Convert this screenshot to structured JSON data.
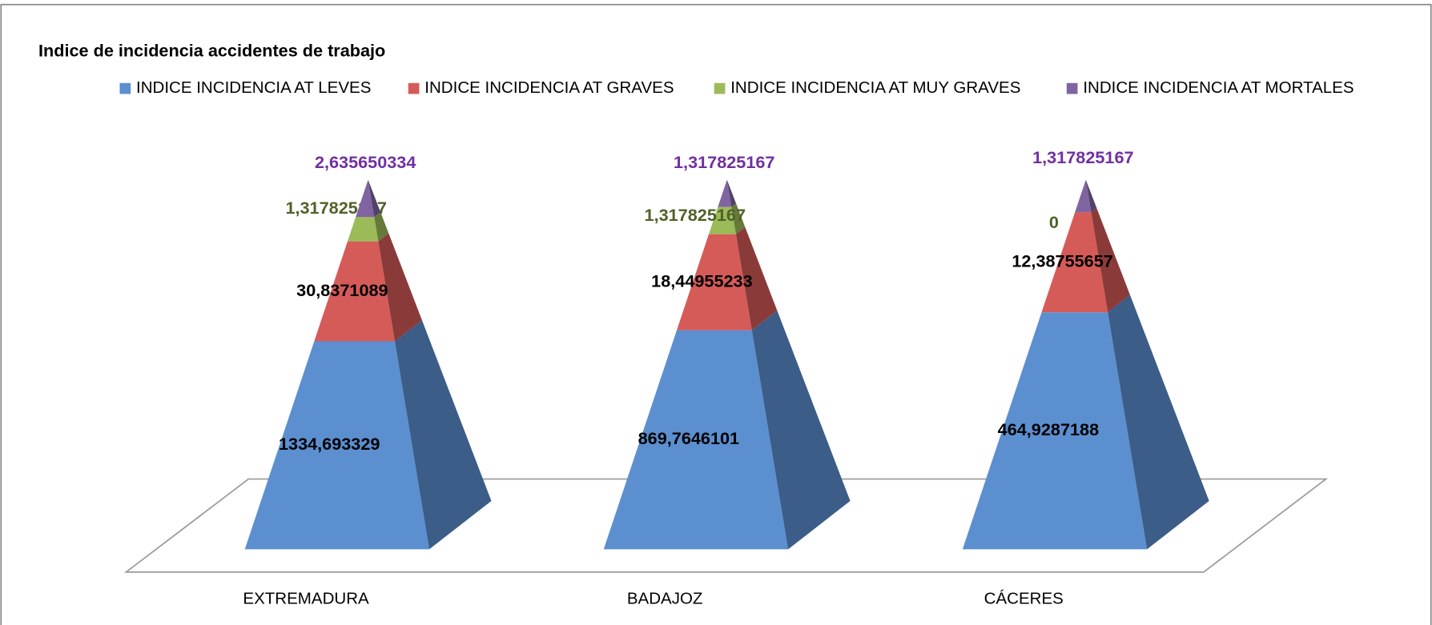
{
  "chart_data": {
    "type": "pyramid",
    "title": "Indice de incidencia accidentes de trabajo",
    "categories": [
      "EXTREMADURA",
      "BADAJOZ",
      "CÁCERES"
    ],
    "series": [
      {
        "name": "INDICE INCIDENCIA AT LEVES",
        "color": "#5b8fd0",
        "label_color": "#000000",
        "values": [
          1334.693329,
          869.7646101,
          464.9287188
        ],
        "value_labels": [
          "1334,693329",
          "869,7646101",
          "464,9287188"
        ]
      },
      {
        "name": "INDICE INCIDENCIA AT GRAVES",
        "color": "#d55b58",
        "label_color": "#000000",
        "values": [
          30.8371089,
          18.44955233,
          12.38755657
        ],
        "value_labels": [
          "30,8371089",
          "18,44955233",
          "12,38755657"
        ]
      },
      {
        "name": "INDICE INCIDENCIA AT MUY GRAVES",
        "color": "#9bbb59",
        "label_color": "#4f6228",
        "values": [
          1.317825167,
          1.317825167,
          0
        ],
        "value_labels": [
          "1,317825167",
          "1,317825167",
          "0"
        ]
      },
      {
        "name": "INDICE INCIDENCIA  AT MORTALES",
        "color": "#8064a2",
        "label_color": "#7030a0",
        "values": [
          2.635650334,
          1.317825167,
          1.317825167
        ],
        "value_labels": [
          "2,635650334",
          "1,317825167",
          "1,317825167"
        ]
      }
    ]
  }
}
